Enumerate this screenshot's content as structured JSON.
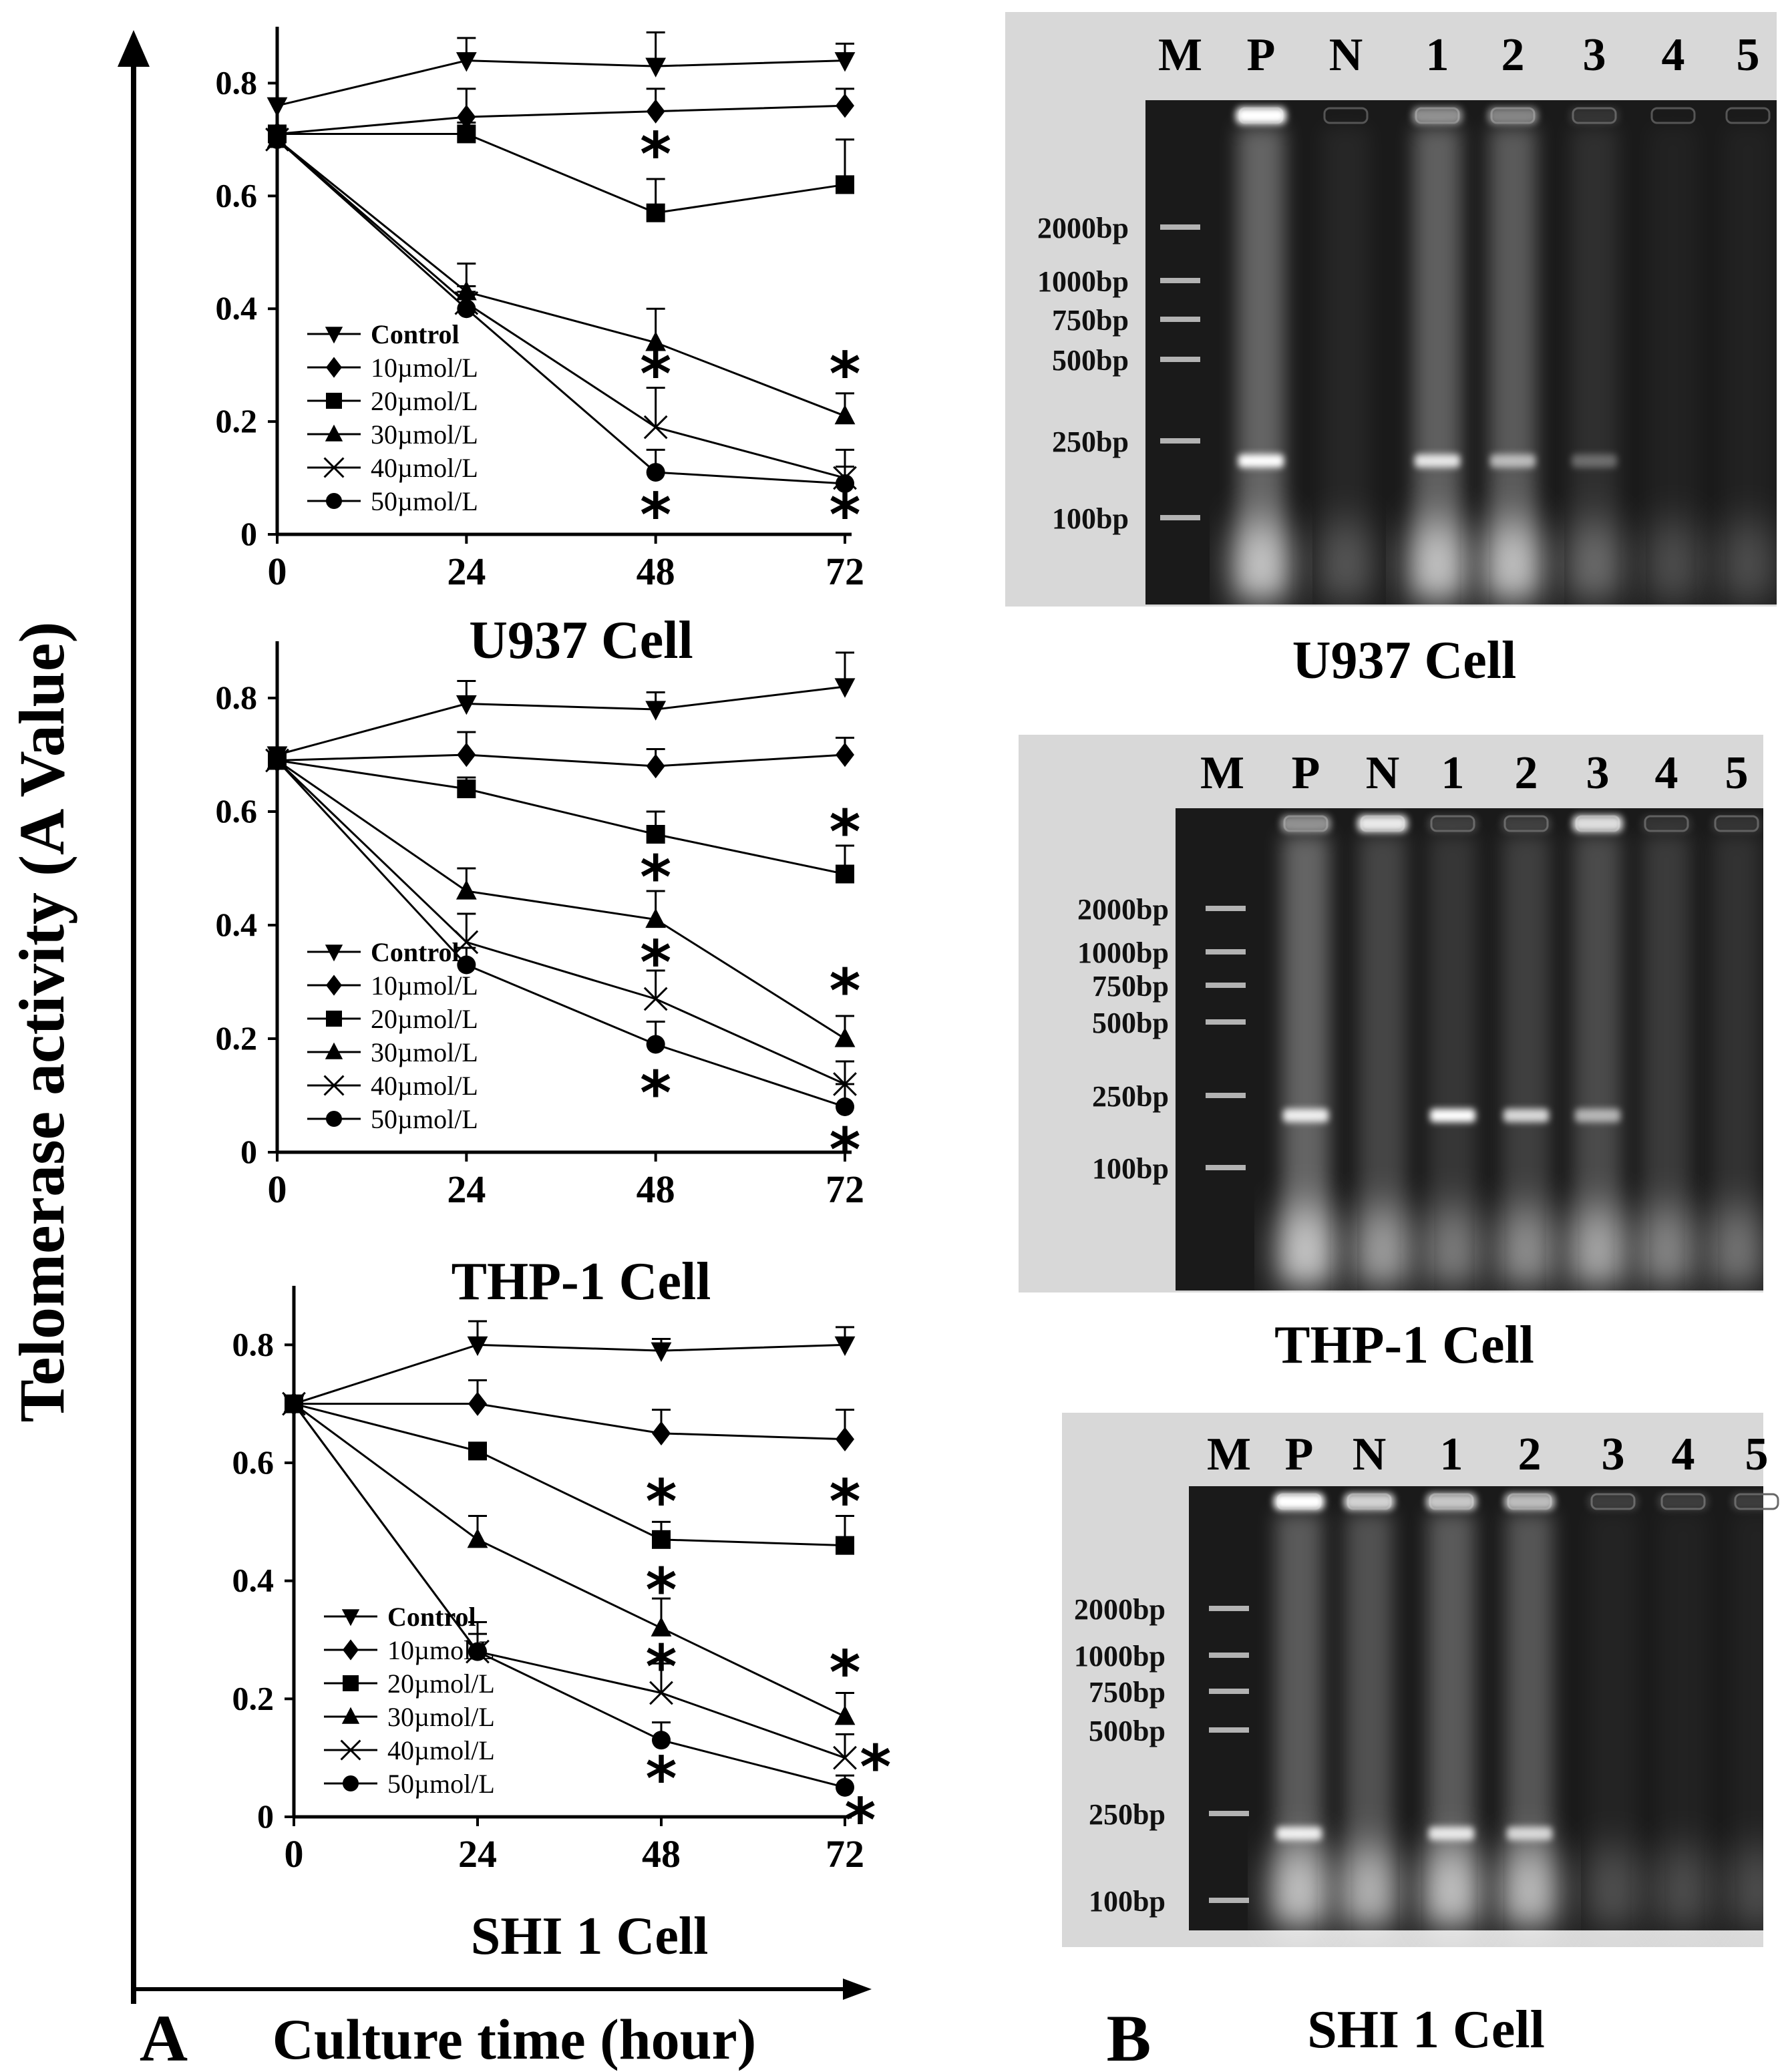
{
  "figure": {
    "y_axis_label": "Telomerase activity (A Value)",
    "x_axis_label": "Culture time (hour)",
    "panel_a_label": "A",
    "panel_b_label": "B"
  },
  "chart_data": [
    {
      "type": "line",
      "title": "U937 Cell",
      "x": [
        0,
        24,
        48,
        72
      ],
      "xlim": [
        0,
        72
      ],
      "ylim": [
        0,
        0.9
      ],
      "yticks": [
        "0",
        "0.2",
        "0.4",
        "0.6",
        "0.8"
      ],
      "xticks": [
        "0",
        "24",
        "48",
        "72"
      ],
      "legend_position": "bottom-left",
      "series": [
        {
          "name": "Control",
          "marker": "tri-down",
          "values": [
            0.76,
            0.84,
            0.83,
            0.84
          ],
          "errors": [
            0,
            0.04,
            0.06,
            0.03
          ]
        },
        {
          "name": "10µmol/L",
          "marker": "diamond",
          "values": [
            0.71,
            0.74,
            0.75,
            0.76
          ],
          "errors": [
            0,
            0.05,
            0.04,
            0.03
          ]
        },
        {
          "name": "20µmol/L",
          "marker": "square",
          "values": [
            0.71,
            0.71,
            0.57,
            0.62
          ],
          "errors": [
            0,
            0.02,
            0.06,
            0.08
          ]
        },
        {
          "name": "30µmol/L",
          "marker": "triangle",
          "values": [
            0.7,
            0.43,
            0.34,
            0.21
          ],
          "errors": [
            0,
            0.05,
            0.06,
            0.04
          ]
        },
        {
          "name": "40µmol/L",
          "marker": "x",
          "values": [
            0.7,
            0.41,
            0.19,
            0.1
          ],
          "errors": [
            0,
            0.03,
            0.07,
            0.05
          ]
        },
        {
          "name": "50µmol/L",
          "marker": "circle",
          "values": [
            0.7,
            0.4,
            0.11,
            0.09
          ],
          "errors": [
            0,
            0.03,
            0.04,
            0.03
          ]
        }
      ],
      "annotations": [
        {
          "text": "*",
          "x": 48,
          "y": 0.68
        },
        {
          "text": "*",
          "x": 48,
          "y": 0.29
        },
        {
          "text": "*",
          "x": 48,
          "y": 0.04
        },
        {
          "text": "*",
          "x": 72,
          "y": 0.29
        },
        {
          "text": "*",
          "x": 72,
          "y": 0.04
        }
      ]
    },
    {
      "type": "line",
      "title": "THP-1 Cell",
      "x": [
        0,
        24,
        48,
        72
      ],
      "xlim": [
        0,
        72
      ],
      "ylim": [
        0,
        0.9
      ],
      "yticks": [
        "0",
        "0.2",
        "0.4",
        "0.6",
        "0.8"
      ],
      "xticks": [
        "0",
        "24",
        "48",
        "72"
      ],
      "legend_position": "bottom-left",
      "series": [
        {
          "name": "Control",
          "marker": "tri-down",
          "values": [
            0.7,
            0.79,
            0.78,
            0.82
          ],
          "errors": [
            0,
            0.04,
            0.03,
            0.06
          ]
        },
        {
          "name": "10µmol/L",
          "marker": "diamond",
          "values": [
            0.69,
            0.7,
            0.68,
            0.7
          ],
          "errors": [
            0,
            0.04,
            0.03,
            0.03
          ]
        },
        {
          "name": "20µmol/L",
          "marker": "square",
          "values": [
            0.69,
            0.64,
            0.56,
            0.49
          ],
          "errors": [
            0,
            0.02,
            0.04,
            0.05
          ]
        },
        {
          "name": "30µmol/L",
          "marker": "triangle",
          "values": [
            0.69,
            0.46,
            0.41,
            0.2
          ],
          "errors": [
            0,
            0.04,
            0.05,
            0.04
          ]
        },
        {
          "name": "40µmol/L",
          "marker": "x",
          "values": [
            0.69,
            0.37,
            0.27,
            0.12
          ],
          "errors": [
            0,
            0.05,
            0.05,
            0.04
          ]
        },
        {
          "name": "50µmol/L",
          "marker": "circle",
          "values": [
            0.69,
            0.33,
            0.19,
            0.08
          ],
          "errors": [
            0,
            0.03,
            0.04,
            0.04
          ]
        }
      ],
      "annotations": [
        {
          "text": "*",
          "x": 48,
          "y": 0.49
        },
        {
          "text": "*",
          "x": 48,
          "y": 0.34
        },
        {
          "text": "*",
          "x": 48,
          "y": 0.11
        },
        {
          "text": "*",
          "x": 72,
          "y": 0.57
        },
        {
          "text": "*",
          "x": 72,
          "y": 0.29
        },
        {
          "text": "*",
          "x": 72,
          "y": 0.01
        }
      ]
    },
    {
      "type": "line",
      "title": "SHI 1 Cell",
      "x": [
        0,
        24,
        48,
        72
      ],
      "xlim": [
        0,
        72
      ],
      "ylim": [
        0,
        0.9
      ],
      "yticks": [
        "0",
        "0.2",
        "0.4",
        "0.6",
        "0.8"
      ],
      "xticks": [
        "0",
        "24",
        "48",
        "72"
      ],
      "legend_position": "bottom-left",
      "series": [
        {
          "name": "Control",
          "marker": "tri-down",
          "values": [
            0.7,
            0.8,
            0.79,
            0.8
          ],
          "errors": [
            0,
            0.04,
            0.02,
            0.03
          ]
        },
        {
          "name": "10µmol/L",
          "marker": "diamond",
          "values": [
            0.7,
            0.7,
            0.65,
            0.64
          ],
          "errors": [
            0,
            0.04,
            0.04,
            0.05
          ]
        },
        {
          "name": "20µmol/L",
          "marker": "square",
          "values": [
            0.7,
            0.62,
            0.47,
            0.46
          ],
          "errors": [
            0,
            0.01,
            0.03,
            0.05
          ]
        },
        {
          "name": "30µmol/L",
          "marker": "triangle",
          "values": [
            0.7,
            0.47,
            0.32,
            0.17
          ],
          "errors": [
            0,
            0.04,
            0.05,
            0.04
          ]
        },
        {
          "name": "40µmol/L",
          "marker": "x",
          "values": [
            0.7,
            0.28,
            0.21,
            0.1
          ],
          "errors": [
            0,
            0.05,
            0.05,
            0.04
          ]
        },
        {
          "name": "50µmol/L",
          "marker": "circle",
          "values": [
            0.7,
            0.28,
            0.13,
            0.05
          ],
          "errors": [
            0,
            0.03,
            0.03,
            0.02
          ]
        }
      ],
      "annotations": [
        {
          "text": "*",
          "x": 48,
          "y": 0.54
        },
        {
          "text": "*",
          "x": 48,
          "y": 0.39
        },
        {
          "text": "*",
          "x": 48,
          "y": 0.26
        },
        {
          "text": "*",
          "x": 48,
          "y": 0.07
        },
        {
          "text": "*",
          "x": 72,
          "y": 0.54
        },
        {
          "text": "*",
          "x": 72,
          "y": 0.25
        },
        {
          "text": "*",
          "x": 76,
          "y": 0.09
        },
        {
          "text": "*",
          "x": 74,
          "y": 0.0
        }
      ]
    }
  ],
  "gels": [
    {
      "title": "U937 Cell",
      "lane_labels": [
        "M",
        "P",
        "N",
        "1",
        "2",
        "3",
        "4",
        "5"
      ],
      "ladder_labels": [
        "2000bp",
        "1000bp",
        "750bp",
        "500bp",
        "250bp",
        "100bp"
      ],
      "band_intensity_250bp": [
        0,
        1.0,
        0,
        0.85,
        0.6,
        0.3,
        0,
        0
      ],
      "smear_intensity": [
        0,
        0.9,
        0.15,
        0.85,
        0.8,
        0.25,
        0.1,
        0.1
      ],
      "well_glow": [
        0,
        1.0,
        0,
        0.5,
        0.45,
        0.1,
        0,
        0
      ]
    },
    {
      "title": "THP-1 Cell",
      "lane_labels": [
        "M",
        "P",
        "N",
        "1",
        "2",
        "3",
        "4",
        "5"
      ],
      "ladder_labels": [
        "2000bp",
        "1000bp",
        "750bp",
        "500bp",
        "250bp",
        "100bp"
      ],
      "band_intensity_250bp": [
        0,
        0.9,
        0,
        1.0,
        0.8,
        0.6,
        0,
        0
      ],
      "smear_intensity": [
        0,
        0.9,
        0.55,
        0.35,
        0.45,
        0.6,
        0.4,
        0.3
      ],
      "well_glow": [
        0,
        0.5,
        0.9,
        0.15,
        0.15,
        0.85,
        0.1,
        0.1
      ]
    },
    {
      "title": "SHI 1 Cell",
      "lane_labels": [
        "M",
        "P",
        "N",
        "1",
        "2",
        "3",
        "4",
        "5"
      ],
      "ladder_labels": [
        "2000bp",
        "1000bp",
        "750bp",
        "500bp",
        "250bp",
        "100bp"
      ],
      "band_intensity_250bp": [
        0,
        0.9,
        0,
        0.85,
        0.75,
        0,
        0,
        0
      ],
      "smear_intensity": [
        0,
        0.8,
        0.7,
        0.8,
        0.75,
        0.12,
        0.1,
        0.1
      ],
      "well_glow": [
        0,
        1.0,
        0.8,
        0.75,
        0.7,
        0.15,
        0.15,
        0.15
      ]
    }
  ]
}
